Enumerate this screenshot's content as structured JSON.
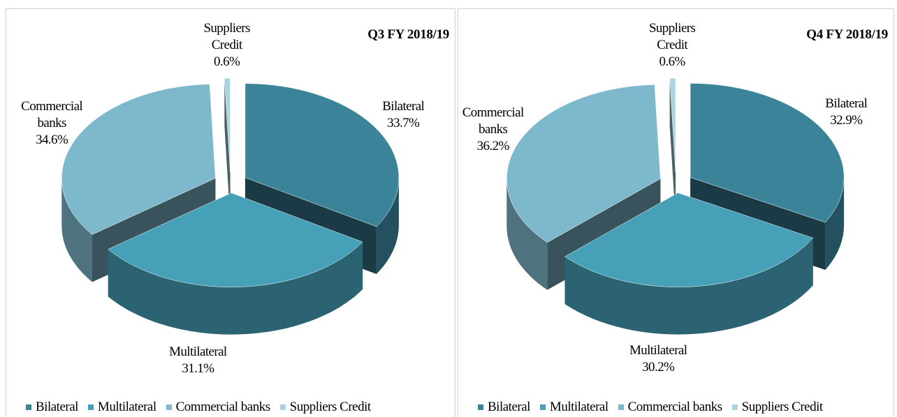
{
  "chart_data": [
    {
      "type": "pie3d",
      "title": "Q3  FY 2018/19",
      "categories": [
        "Bilateral",
        "Multilateral",
        "Commercial banks",
        "Suppliers Credit"
      ],
      "values": [
        33.7,
        31.1,
        34.6,
        0.6
      ],
      "value_labels": [
        "33.7%",
        "31.1%",
        "34.6%",
        "0.6%"
      ],
      "colors": [
        "#3a8399",
        "#45a0b8",
        "#7db8cc",
        "#a9d5e3"
      ]
    },
    {
      "type": "pie3d",
      "title": "Q4 FY 2018/19",
      "categories": [
        "Bilateral",
        "Multilateral",
        "Commercial banks",
        "Suppliers Credit"
      ],
      "values": [
        32.9,
        30.2,
        36.2,
        0.6
      ],
      "value_labels": [
        "32.9%",
        "30.2%",
        "36.2%",
        "0.6%"
      ],
      "colors": [
        "#3a8399",
        "#45a0b8",
        "#7db8cc",
        "#a9d5e3"
      ]
    }
  ]
}
